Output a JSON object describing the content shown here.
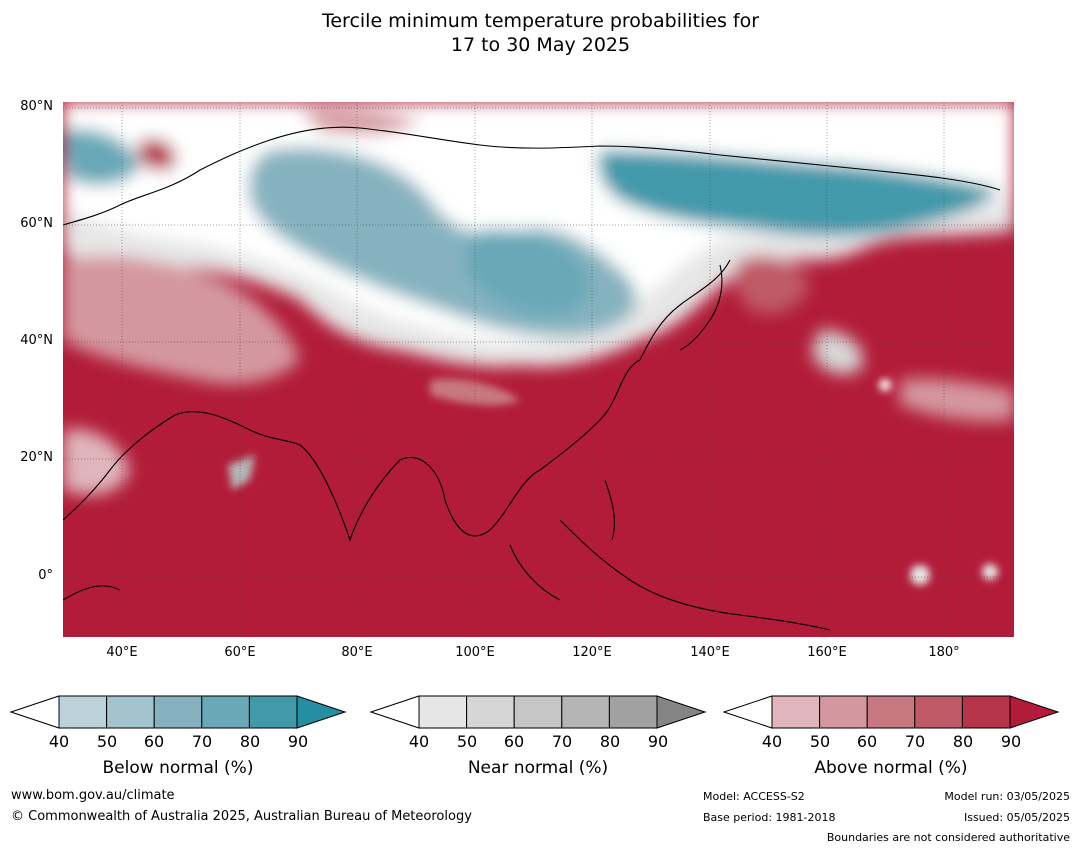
{
  "title": {
    "line1": "Tercile minimum temperature probabilities for",
    "line2": "17 to 30 May 2025"
  },
  "map": {
    "lat_labels": [
      "80°N",
      "60°N",
      "40°N",
      "20°N",
      "0°"
    ],
    "lon_labels": [
      "40°E",
      "60°E",
      "80°E",
      "100°E",
      "120°E",
      "140°E",
      "160°E",
      "180°"
    ],
    "colors": {
      "below": [
        "#bcd2da",
        "#a3c4cc",
        "#86b2bf",
        "#69a8b7",
        "#4299aa",
        "#268ea1"
      ],
      "near": [
        "#e6e6e6",
        "#d6d6d6",
        "#c6c6c6",
        "#b5b5b5",
        "#a1a1a1",
        "#858585"
      ],
      "above": [
        "#e0b5bc",
        "#d4979f",
        "#c87880",
        "#c05a66",
        "#b73548",
        "#b21c39"
      ]
    }
  },
  "colorbars": [
    {
      "name": "below",
      "title": "Below normal (%)",
      "ticks": [
        "40",
        "50",
        "60",
        "70",
        "80",
        "90"
      ]
    },
    {
      "name": "near",
      "title": "Near normal (%)",
      "ticks": [
        "40",
        "50",
        "60",
        "70",
        "80",
        "90"
      ]
    },
    {
      "name": "above",
      "title": "Above normal (%)",
      "ticks": [
        "40",
        "50",
        "60",
        "70",
        "80",
        "90"
      ]
    }
  ],
  "footer": {
    "website": "www.bom.gov.au/climate",
    "copyright": "© Commonwealth of Australia 2025, Australian Bureau of Meteorology",
    "model": "Model: ACCESS-S2",
    "base_period": "Base period: 1981-2018",
    "model_run": "Model run: 03/05/2025",
    "issued": "Issued: 05/05/2025",
    "disclaimer": "Boundaries are not considered authoritative"
  }
}
